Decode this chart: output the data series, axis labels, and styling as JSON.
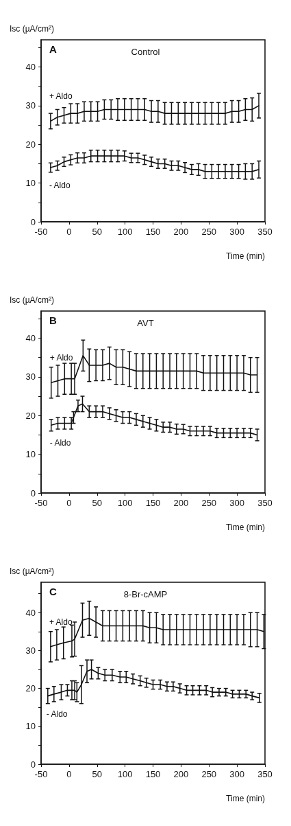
{
  "chart_data": [
    {
      "type": "line",
      "title": "Control",
      "ylabel": "Isc (µA/cm²)",
      "xlabel": "Time (min)",
      "annotations": [
        "A"
      ],
      "xlim": [
        -50,
        350
      ],
      "xticks": [
        -50,
        0,
        50,
        100,
        150,
        200,
        250,
        300,
        350
      ],
      "ylim": [
        0,
        47
      ],
      "yticks": [
        0,
        {
          "value": 5,
          "label": null
        },
        10,
        {
          "value": 15,
          "label": null
        },
        20,
        {
          "value": 25,
          "label": null
        },
        30,
        {
          "value": 35,
          "label": null
        },
        40,
        {
          "value": 45,
          "label": null
        }
      ],
      "grid": false,
      "legend": false,
      "marker": "none",
      "line_style": "solid",
      "series": [
        {
          "name": "+ Aldo",
          "color": "#111111",
          "x": [
            -33,
            -21,
            -9,
            3,
            15,
            27,
            39,
            51,
            63,
            75,
            87,
            99,
            111,
            123,
            135,
            147,
            159,
            171,
            183,
            195,
            207,
            219,
            231,
            243,
            255,
            267,
            279,
            291,
            303,
            315,
            327,
            339
          ],
          "values": [
            26,
            27,
            27.5,
            28,
            28,
            28.5,
            28.5,
            28.5,
            29,
            29,
            29,
            29,
            29,
            29,
            29,
            28.5,
            28.5,
            28,
            28,
            28,
            28,
            28,
            28,
            28,
            28,
            28,
            28,
            28.5,
            28.5,
            29,
            29,
            30
          ],
          "errors": [
            2,
            2,
            2,
            2.5,
            2.5,
            2.5,
            2.5,
            2.5,
            2.5,
            2.5,
            2.8,
            2.8,
            2.8,
            2.8,
            2.8,
            2.8,
            2.8,
            2.8,
            2.8,
            2.8,
            2.8,
            2.8,
            2.8,
            2.8,
            2.8,
            2.8,
            2.8,
            2.8,
            2.8,
            2.8,
            3,
            3.2
          ]
        },
        {
          "name": "- Aldo",
          "color": "#111111",
          "x": [
            -33,
            -21,
            -9,
            3,
            15,
            27,
            39,
            51,
            63,
            75,
            87,
            99,
            111,
            123,
            135,
            147,
            159,
            171,
            183,
            195,
            207,
            219,
            231,
            243,
            255,
            267,
            279,
            291,
            303,
            315,
            327,
            339
          ],
          "values": [
            14,
            14.5,
            15.5,
            16,
            16.5,
            16.5,
            17,
            17,
            17,
            17,
            17,
            17,
            16.5,
            16.5,
            16,
            15.5,
            15,
            15,
            14.5,
            14.5,
            14,
            13.5,
            13.5,
            13,
            13,
            13,
            13,
            13,
            13,
            13,
            13,
            13.5
          ],
          "errors": [
            1.2,
            1.2,
            1.2,
            1.3,
            1.3,
            1.3,
            1.5,
            1.5,
            1.5,
            1.5,
            1.5,
            1.3,
            1.2,
            1.2,
            1.2,
            1.2,
            1.2,
            1.2,
            1.2,
            1.2,
            1.3,
            1.3,
            1.5,
            1.8,
            1.8,
            1.8,
            1.8,
            1.8,
            1.8,
            2,
            2,
            2.2
          ]
        }
      ]
    },
    {
      "type": "line",
      "title": "AVT",
      "ylabel": "Isc (µA/cm²)",
      "xlabel": "Time (min)",
      "annotations": [
        "B"
      ],
      "xlim": [
        -50,
        350
      ],
      "xticks": [
        -50,
        0,
        50,
        100,
        150,
        200,
        250,
        300,
        350
      ],
      "ylim": [
        0,
        47
      ],
      "yticks": [
        0,
        {
          "value": 5,
          "label": null
        },
        10,
        {
          "value": 15,
          "label": null
        },
        20,
        {
          "value": 25,
          "label": null
        },
        30,
        {
          "value": 35,
          "label": null
        },
        40,
        {
          "value": 45,
          "label": null
        }
      ],
      "grid": false,
      "legend": false,
      "marker": "none",
      "line_style": "solid",
      "series": [
        {
          "name": "+ Aldo",
          "color": "#111111",
          "x": [
            -32,
            -20,
            -8,
            4,
            10,
            25,
            36,
            48,
            60,
            72,
            84,
            96,
            108,
            120,
            132,
            144,
            156,
            168,
            180,
            192,
            204,
            216,
            228,
            240,
            252,
            264,
            276,
            288,
            300,
            312,
            324,
            336
          ],
          "values": [
            28.5,
            29,
            29.5,
            29.5,
            29.5,
            35.5,
            33,
            33,
            33,
            33.5,
            32.5,
            32.5,
            32,
            31.5,
            31.5,
            31.5,
            31.5,
            31.5,
            31.5,
            31.5,
            31.5,
            31.5,
            31.5,
            31,
            31,
            31,
            31,
            31,
            31,
            31,
            30.5,
            30.5
          ],
          "errors": [
            4,
            4,
            4,
            4,
            4,
            4,
            4.2,
            4,
            4,
            4.2,
            4.5,
            4.5,
            4.5,
            4.5,
            4.5,
            4.5,
            4.5,
            4.5,
            4.5,
            4.5,
            4.5,
            4.5,
            4.5,
            4.5,
            4.5,
            4.5,
            4.5,
            4.5,
            4.5,
            4.5,
            4.5,
            4.5
          ]
        },
        {
          "name": "- Aldo",
          "color": "#111111",
          "x": [
            -32,
            -20,
            -8,
            4,
            8,
            16,
            24,
            36,
            48,
            60,
            72,
            84,
            96,
            108,
            120,
            132,
            144,
            156,
            168,
            180,
            192,
            204,
            216,
            228,
            240,
            252,
            264,
            276,
            288,
            300,
            312,
            324,
            336
          ],
          "values": [
            17.5,
            18,
            18,
            18,
            19.5,
            22.5,
            23,
            21,
            21,
            21,
            20.5,
            20,
            19.5,
            19.5,
            19,
            18.5,
            18,
            17.5,
            17,
            17,
            16.5,
            16.5,
            16,
            16,
            16,
            16,
            15.5,
            15.5,
            15.5,
            15.5,
            15.5,
            15.5,
            15
          ],
          "errors": [
            1.5,
            1.5,
            1.5,
            1.5,
            1.5,
            1.5,
            2,
            1.5,
            1.5,
            1.5,
            1.5,
            1.5,
            1.5,
            1.5,
            1.5,
            1.5,
            1.5,
            1.5,
            1.3,
            1.3,
            1.3,
            1.2,
            1.2,
            1.2,
            1.2,
            1.2,
            1.2,
            1.2,
            1.2,
            1.2,
            1.2,
            1.2,
            1.5
          ]
        }
      ]
    },
    {
      "type": "line",
      "title": "8-Br-cAMP",
      "ylabel": "Isc (µA/cm²)",
      "xlabel": "Time (min)",
      "annotations": [
        "C"
      ],
      "xlim": [
        -50,
        350
      ],
      "xticks": [
        -50,
        0,
        50,
        100,
        150,
        200,
        250,
        300,
        350
      ],
      "ylim": [
        0,
        48
      ],
      "yticks": [
        0,
        {
          "value": 5,
          "label": null
        },
        10,
        {
          "value": 15,
          "label": null
        },
        20,
        {
          "value": 25,
          "label": null
        },
        30,
        {
          "value": 35,
          "label": null
        },
        40,
        {
          "value": 45,
          "label": null
        }
      ],
      "grid": false,
      "legend": false,
      "marker": "none",
      "line_style": "solid",
      "series": [
        {
          "name": "+ Aldo",
          "color": "#111111",
          "x": [
            -33,
            -22,
            -10,
            5,
            10,
            24,
            36,
            48,
            60,
            72,
            84,
            96,
            108,
            120,
            132,
            144,
            156,
            168,
            180,
            192,
            204,
            216,
            228,
            240,
            252,
            264,
            276,
            288,
            300,
            312,
            324,
            336,
            348
          ],
          "values": [
            31,
            31.5,
            32,
            32.5,
            33,
            38,
            38.5,
            37.5,
            36.5,
            36.5,
            36.5,
            36.5,
            36.5,
            36.5,
            36.5,
            36,
            36,
            35.5,
            35.5,
            35.5,
            35.5,
            35.5,
            35.5,
            35.5,
            35.5,
            35.5,
            35.5,
            35.5,
            35.5,
            35.5,
            35.5,
            35.5,
            35
          ],
          "errors": [
            4,
            4,
            4.2,
            4.2,
            4.5,
            4.5,
            4.5,
            4,
            4,
            4,
            4,
            4,
            4,
            4,
            4,
            4,
            4,
            4,
            4,
            4,
            4,
            4,
            4,
            4,
            4,
            4,
            4,
            4,
            4,
            4,
            4.5,
            4.5,
            4.5
          ]
        },
        {
          "name": "- Aldo",
          "color": "#111111",
          "x": [
            -38,
            -27,
            -14,
            -3,
            5,
            10,
            14,
            22,
            32,
            40,
            52,
            64,
            77,
            91,
            102,
            114,
            127,
            138,
            150,
            163,
            175,
            186,
            198,
            210,
            221,
            233,
            245,
            256,
            268,
            280,
            292,
            304,
            316,
            327,
            340
          ],
          "values": [
            18,
            18.5,
            19,
            19.5,
            19.5,
            19.5,
            19,
            21,
            24.5,
            25,
            24,
            23.5,
            23.5,
            23,
            23,
            22.5,
            22,
            21.5,
            21,
            21,
            20.5,
            20.5,
            20,
            19.5,
            19.5,
            19.5,
            19.5,
            19,
            19,
            19,
            18.5,
            18.5,
            18.5,
            18,
            17.5
          ],
          "errors": [
            2,
            2,
            2,
            1.5,
            2.5,
            2.5,
            2.5,
            5,
            3,
            2.5,
            1.5,
            1.5,
            1.5,
            1.5,
            1.5,
            1.3,
            1.3,
            1.2,
            1.2,
            1.2,
            1.2,
            1.2,
            1.2,
            1.2,
            1.2,
            1.2,
            1.2,
            1.2,
            1,
            1,
            1,
            1,
            1,
            1,
            1.2
          ]
        }
      ]
    }
  ]
}
